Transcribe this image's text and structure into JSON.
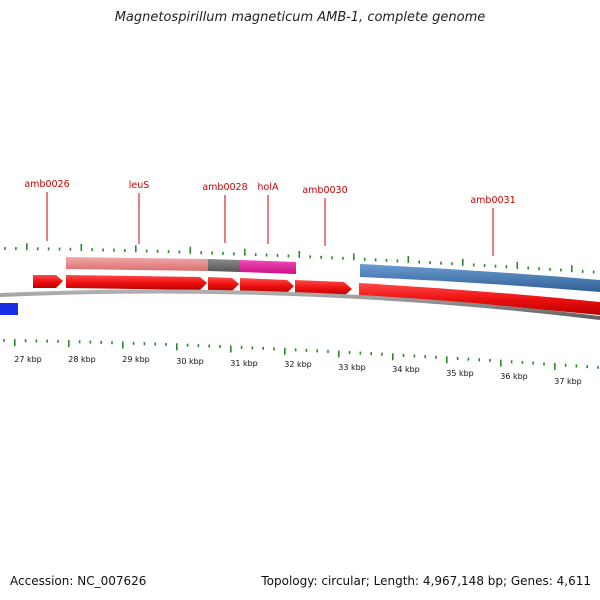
{
  "title": "Magnetospirillum magneticum AMB-1, complete genome",
  "footer": {
    "accession": "Accession: NC_007626",
    "summary": "Topology: circular; Length: 4,967,148 bp; Genes: 4,611"
  },
  "gene_labels": [
    "amb0026",
    "leuS",
    "amb0028",
    "holA",
    "amb0030",
    "amb0031"
  ],
  "kbp_labels": [
    "27 kbp",
    "28 kbp",
    "29 kbp",
    "30 kbp",
    "31 kbp",
    "32 kbp",
    "33 kbp",
    "34 kbp",
    "35 kbp",
    "36 kbp",
    "37 kbp"
  ],
  "colors": {
    "gene_label": "#cc0000",
    "forward_cds": "#ee1111",
    "leader_line": "#cc0000",
    "tick": "#2a8a2a",
    "backbone": "#8a8a8a",
    "feature_pink": "#e88a8a",
    "feature_gray": "#6a6a6a",
    "feature_magenta": "#e0189a",
    "feature_steelblue": "#4a7fb5",
    "feature_blue": "#1a2ee8"
  }
}
